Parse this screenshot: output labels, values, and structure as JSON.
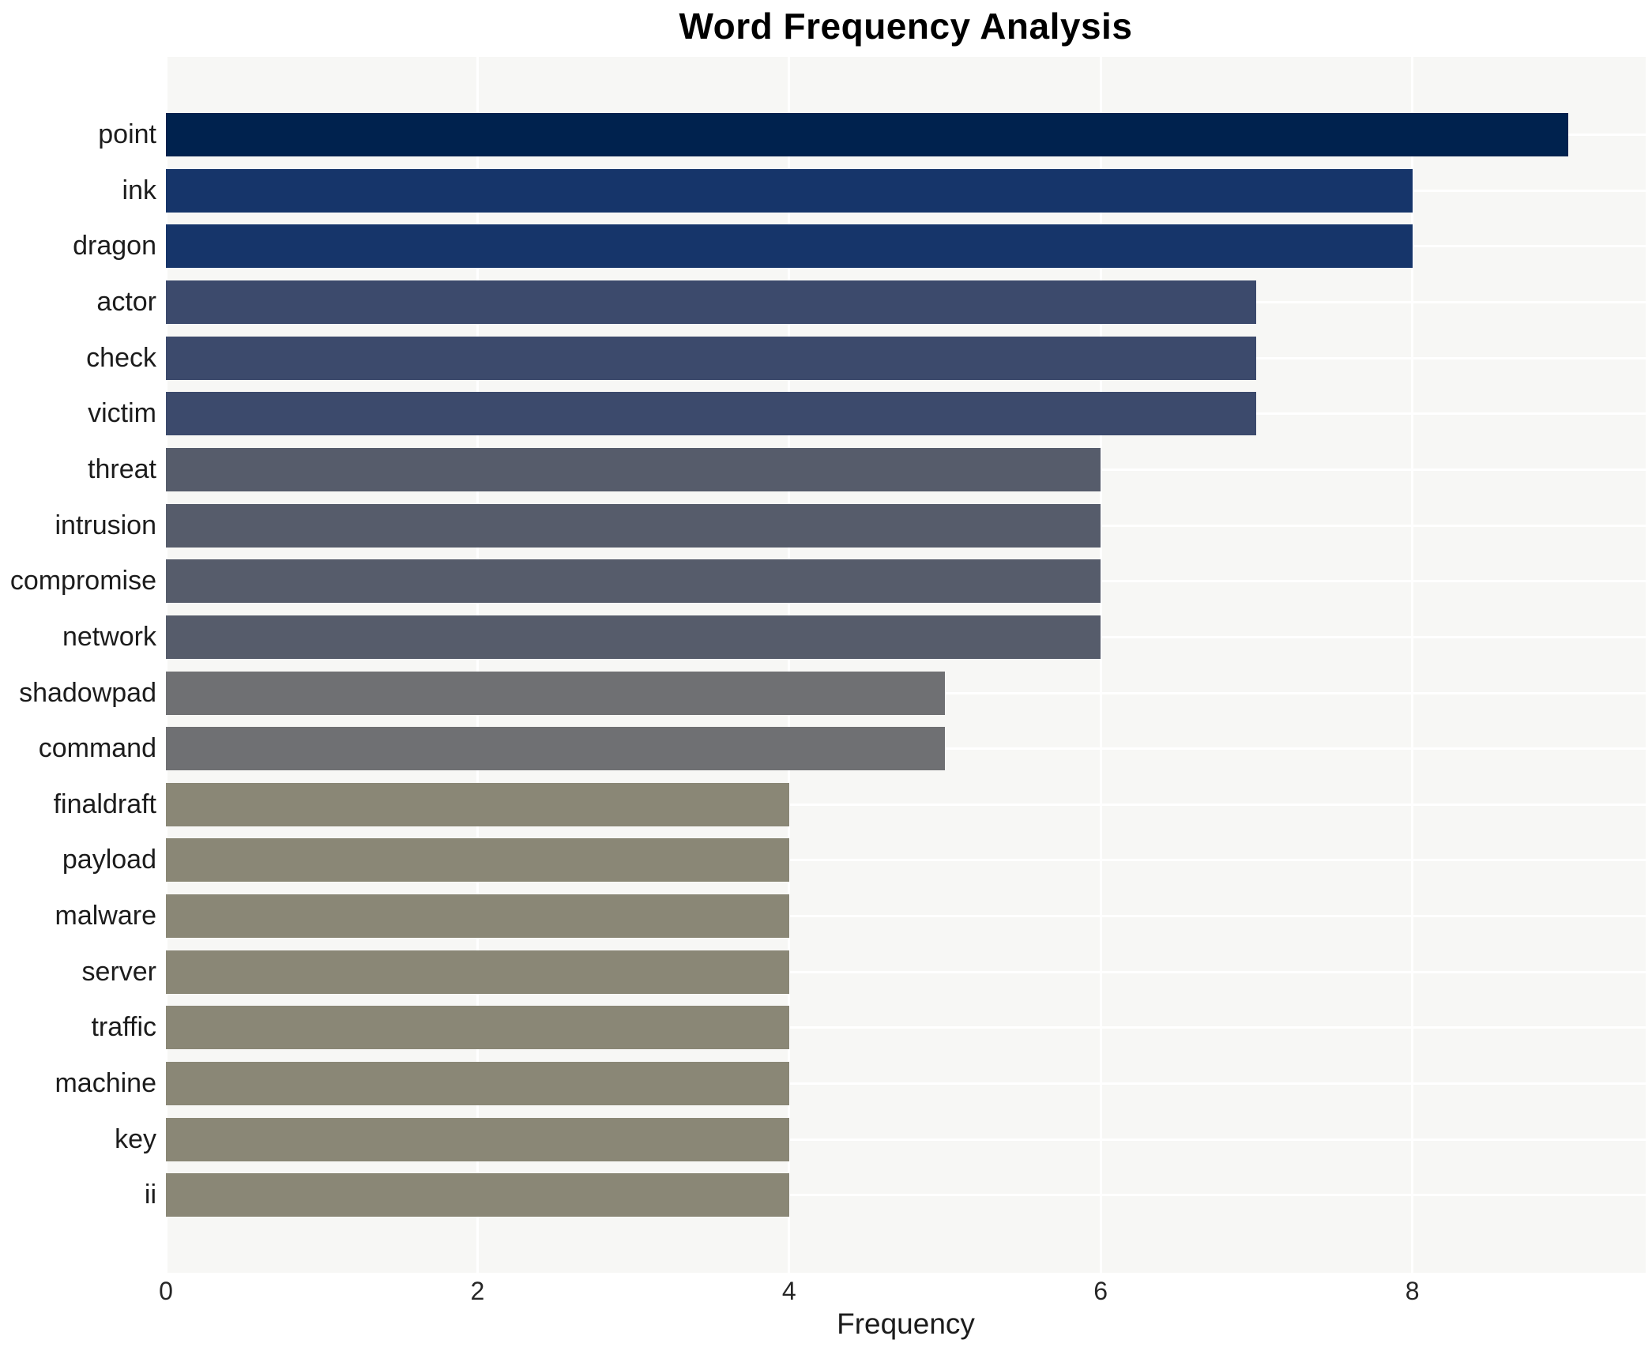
{
  "title": "Word Frequency Analysis",
  "chart_data": {
    "type": "bar",
    "orientation": "horizontal",
    "title": "Word Frequency Analysis",
    "xlabel": "Frequency",
    "ylabel": "",
    "categories": [
      "point",
      "ink",
      "dragon",
      "actor",
      "check",
      "victim",
      "threat",
      "intrusion",
      "compromise",
      "network",
      "shadowpad",
      "command",
      "finaldraft",
      "payload",
      "malware",
      "server",
      "traffic",
      "machine",
      "key",
      "ii"
    ],
    "values": [
      9,
      8,
      8,
      7,
      7,
      7,
      6,
      6,
      6,
      6,
      5,
      5,
      4,
      4,
      4,
      4,
      4,
      4,
      4,
      4
    ],
    "x_ticks": [
      0,
      2,
      4,
      6,
      8
    ],
    "xlim": [
      0,
      9.5
    ],
    "legend": null,
    "grid": "on",
    "gridline_color": "#ffffff",
    "panel_background": "#f7f7f5",
    "figure_background": "#ffffff",
    "text_color": "#1c1c1c",
    "bar_colors_by_value": {
      "9": "#00224e",
      "8": "#16356a",
      "7": "#3c4a6c",
      "6": "#565c6b",
      "5": "#6f7073",
      "4": "#8a8776"
    }
  }
}
